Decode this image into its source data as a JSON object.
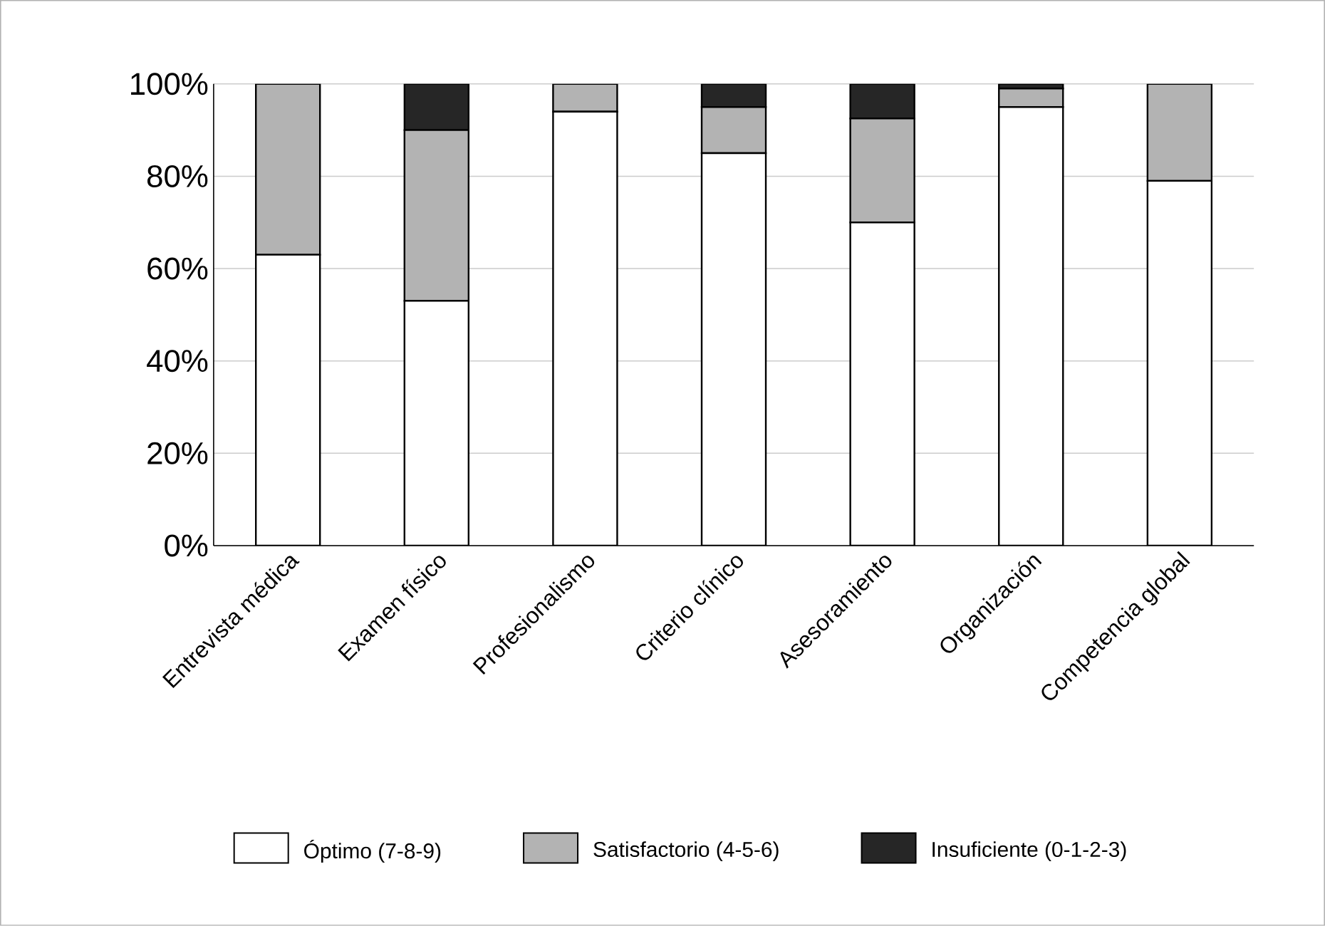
{
  "chart_data": {
    "type": "bar",
    "stacked": true,
    "categories": [
      "Entrevista médica",
      "Examen físico",
      "Profesionalismo",
      "Criterio clínico",
      "Asesoramiento",
      "Organización",
      "Competencia global"
    ],
    "series": [
      {
        "name": "Óptimo (7-8-9)",
        "color": "#ffffff",
        "values": [
          63,
          53,
          94,
          85,
          70,
          95,
          79
        ]
      },
      {
        "name": "Satisfactorio (4-5-6)",
        "color": "#b3b3b3",
        "values": [
          37,
          37,
          6,
          10,
          22.5,
          4,
          21
        ]
      },
      {
        "name": "Insuficiente (0-1-2-3)",
        "color": "#262626",
        "values": [
          0,
          10,
          0,
          5,
          7.5,
          1,
          0
        ]
      }
    ],
    "ylim": [
      0,
      100
    ],
    "yticks": [
      {
        "value": 0,
        "label": "0%"
      },
      {
        "value": 20,
        "label": "20%"
      },
      {
        "value": 40,
        "label": "40%"
      },
      {
        "value": 60,
        "label": "60%"
      },
      {
        "value": 80,
        "label": "80%"
      },
      {
        "value": 100,
        "label": "100%"
      }
    ],
    "grid": "y",
    "legend": "bottom"
  }
}
